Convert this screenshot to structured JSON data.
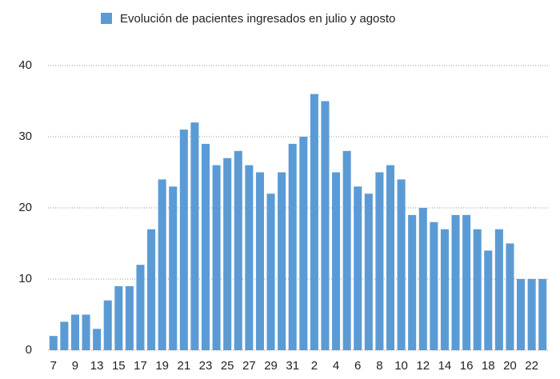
{
  "chart_data": {
    "type": "bar",
    "legend": "Evolución de pacientes ingresados en julio y agosto",
    "categories": [
      "7",
      null,
      "9",
      null,
      "13",
      null,
      "15",
      null,
      "17",
      null,
      "19",
      null,
      "21",
      null,
      "23",
      null,
      "25",
      null,
      "27",
      null,
      "29",
      null,
      "31",
      null,
      "2",
      null,
      "4",
      null,
      "6",
      null,
      "8",
      null,
      "10",
      null,
      "12",
      null,
      "14",
      null,
      "16",
      null,
      "18",
      null,
      "20",
      null,
      "22",
      null
    ],
    "values": [
      2,
      4,
      5,
      5,
      3,
      7,
      9,
      9,
      12,
      17,
      24,
      23,
      31,
      32,
      29,
      26,
      27,
      28,
      26,
      25,
      22,
      25,
      29,
      30,
      36,
      35,
      25,
      28,
      23,
      22,
      25,
      26,
      24,
      19,
      20,
      18,
      17,
      19,
      19,
      17,
      14,
      17,
      15,
      10,
      10,
      10
    ],
    "color": "#5b9bd5",
    "ylim": [
      0,
      40
    ],
    "yticks": [
      0,
      10,
      20,
      30,
      40
    ],
    "grid": true
  }
}
